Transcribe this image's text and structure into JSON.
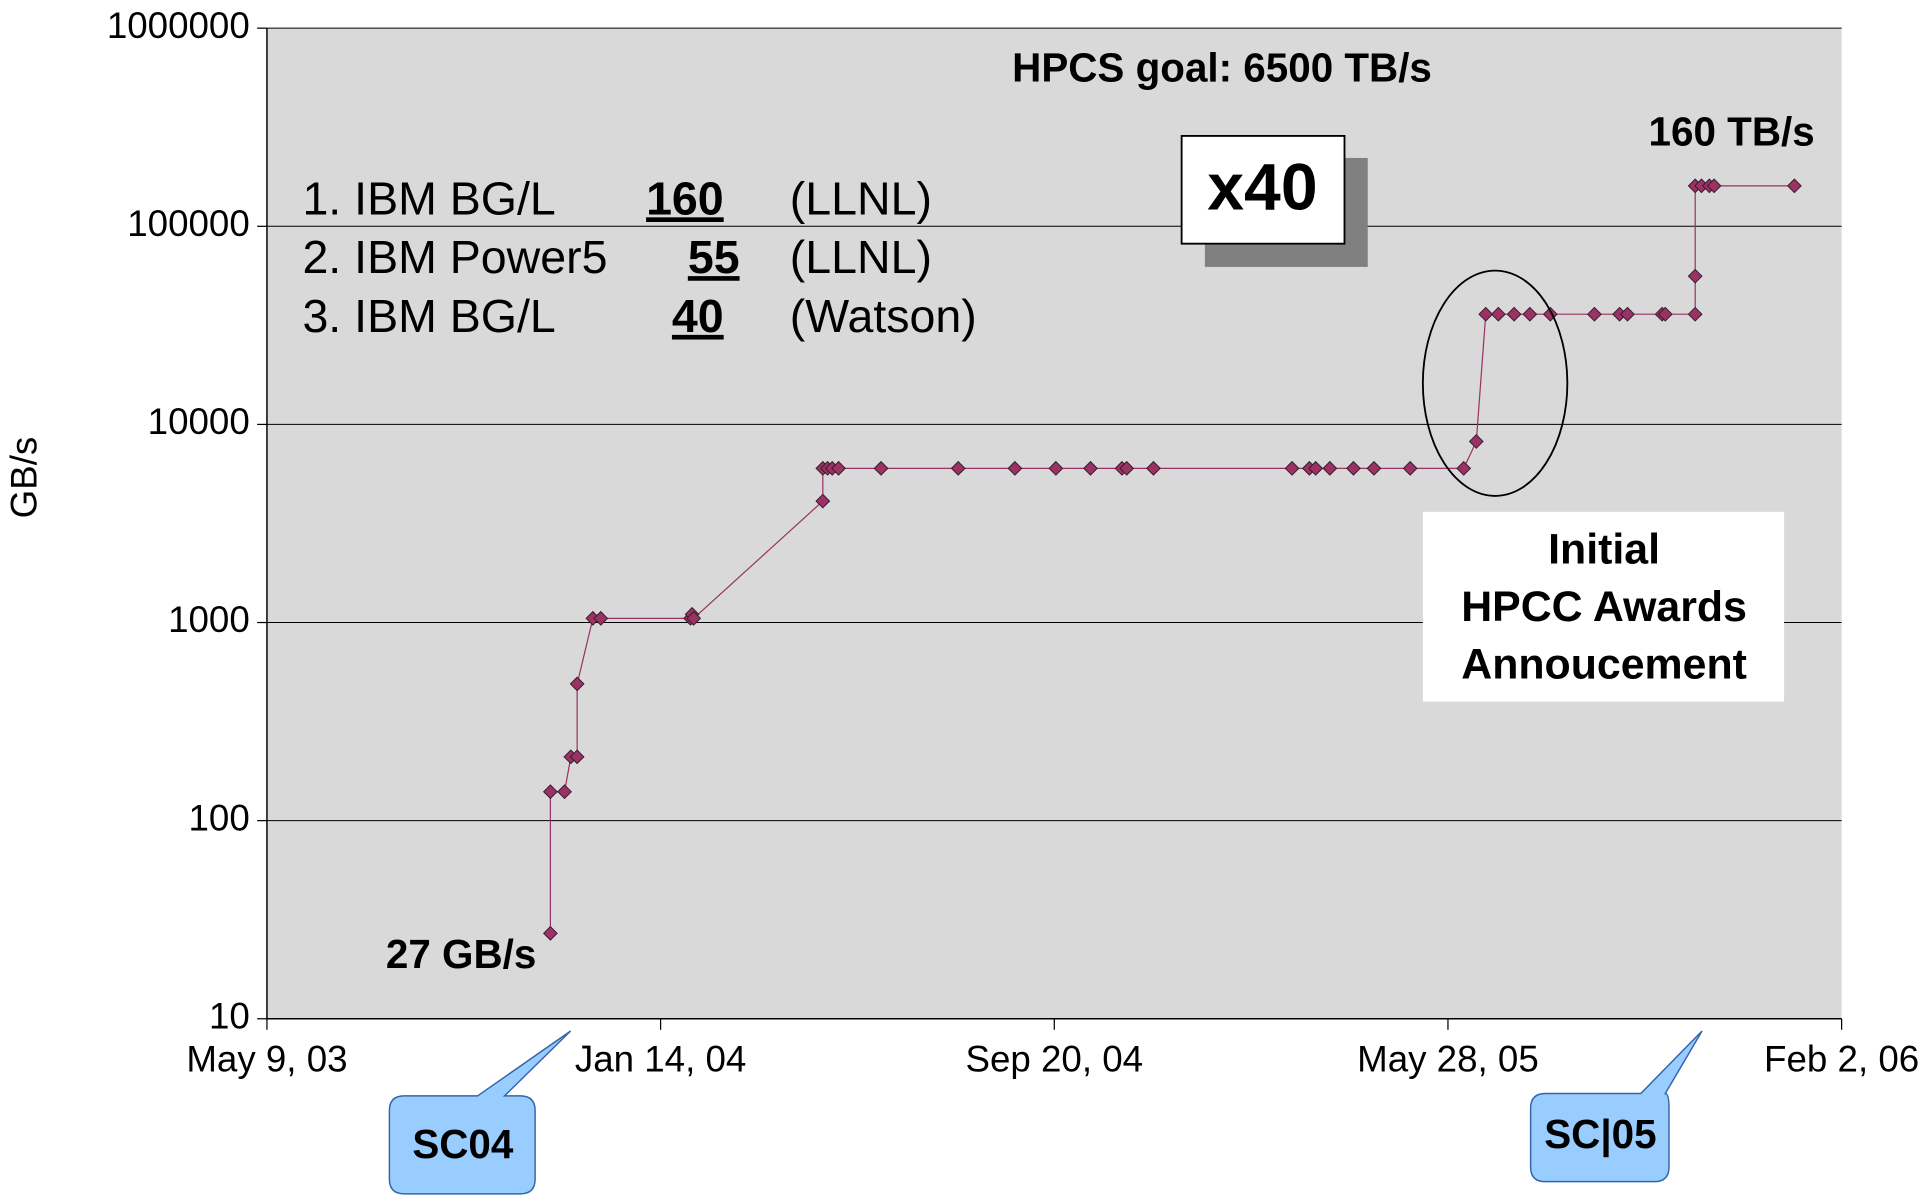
{
  "chart_data": {
    "type": "line",
    "y_label": "GB/s",
    "log_y": true,
    "grid": true,
    "ylim": [
      10,
      1000000
    ],
    "yticks": [
      10,
      100,
      1000,
      10000,
      100000,
      1000000
    ],
    "xlim": [
      "2003-05-09",
      "2006-02-02"
    ],
    "xticks": [
      {
        "value": "2003-05-09",
        "label": "May 9, 03"
      },
      {
        "value": "2004-01-14",
        "label": "Jan 14, 04"
      },
      {
        "value": "2004-09-20",
        "label": "Sep 20, 04"
      },
      {
        "value": "2005-05-28",
        "label": "May 28, 05"
      },
      {
        "value": "2006-02-02",
        "label": "Feb 2, 06"
      }
    ],
    "series": [
      {
        "color": "#993366",
        "x": [
          "2003-11-05",
          "2003-11-05",
          "2003-11-14",
          "2003-11-18",
          "2003-11-22",
          "2003-11-22",
          "2003-12-02",
          "2003-12-07",
          "2004-02-02",
          "2004-02-03",
          "2004-02-04",
          "2004-04-26",
          "2004-04-26",
          "2004-04-29",
          "2004-05-02",
          "2004-05-06",
          "2004-06-02",
          "2004-07-21",
          "2004-08-26",
          "2004-09-21",
          "2004-10-13",
          "2004-11-02",
          "2004-11-05",
          "2004-11-22",
          "2005-02-18",
          "2005-03-01",
          "2005-03-05",
          "2005-03-14",
          "2005-03-29",
          "2005-04-11",
          "2005-05-04",
          "2005-06-07",
          "2005-06-15",
          "2005-06-21",
          "2005-06-29",
          "2005-07-09",
          "2005-07-19",
          "2005-08-01",
          "2005-08-29",
          "2005-09-14",
          "2005-09-19",
          "2005-10-11",
          "2005-10-13",
          "2005-11-01",
          "2005-11-01",
          "2005-11-01",
          "2005-11-05",
          "2005-11-10",
          "2005-11-13",
          "2006-01-03"
        ],
        "values": [
          27,
          140,
          140,
          210,
          210,
          490,
          1050,
          1050,
          1050,
          1100,
          1050,
          4100,
          6000,
          6000,
          6000,
          6000,
          6000,
          6000,
          6000,
          6000,
          6000,
          6000,
          6000,
          6000,
          6000,
          6000,
          6000,
          6000,
          6000,
          6000,
          6000,
          6000,
          8200,
          36000,
          36000,
          36000,
          36000,
          36000,
          36000,
          36000,
          36000,
          36000,
          36000,
          36000,
          56000,
          160000,
          160000,
          160000,
          160000,
          160000
        ]
      }
    ],
    "annotations": {
      "goal": "HPCS goal: 6500 TB/s",
      "end_label": "160 TB/s",
      "start_label": "27 GB/s",
      "factor": "x40",
      "callout": [
        "Initial",
        "HPCC Awards",
        "Annoucement"
      ],
      "sc04": "SC04",
      "sc05": "SC|05",
      "ranking": [
        {
          "rank": "1. IBM BG/L",
          "value": 160,
          "site": "(LLNL)"
        },
        {
          "rank": "2. IBM Power5",
          "value": 55,
          "site": "(LLNL)"
        },
        {
          "rank": "3. IBM BG/L",
          "value": 40,
          "site": "(Watson)"
        }
      ]
    }
  }
}
